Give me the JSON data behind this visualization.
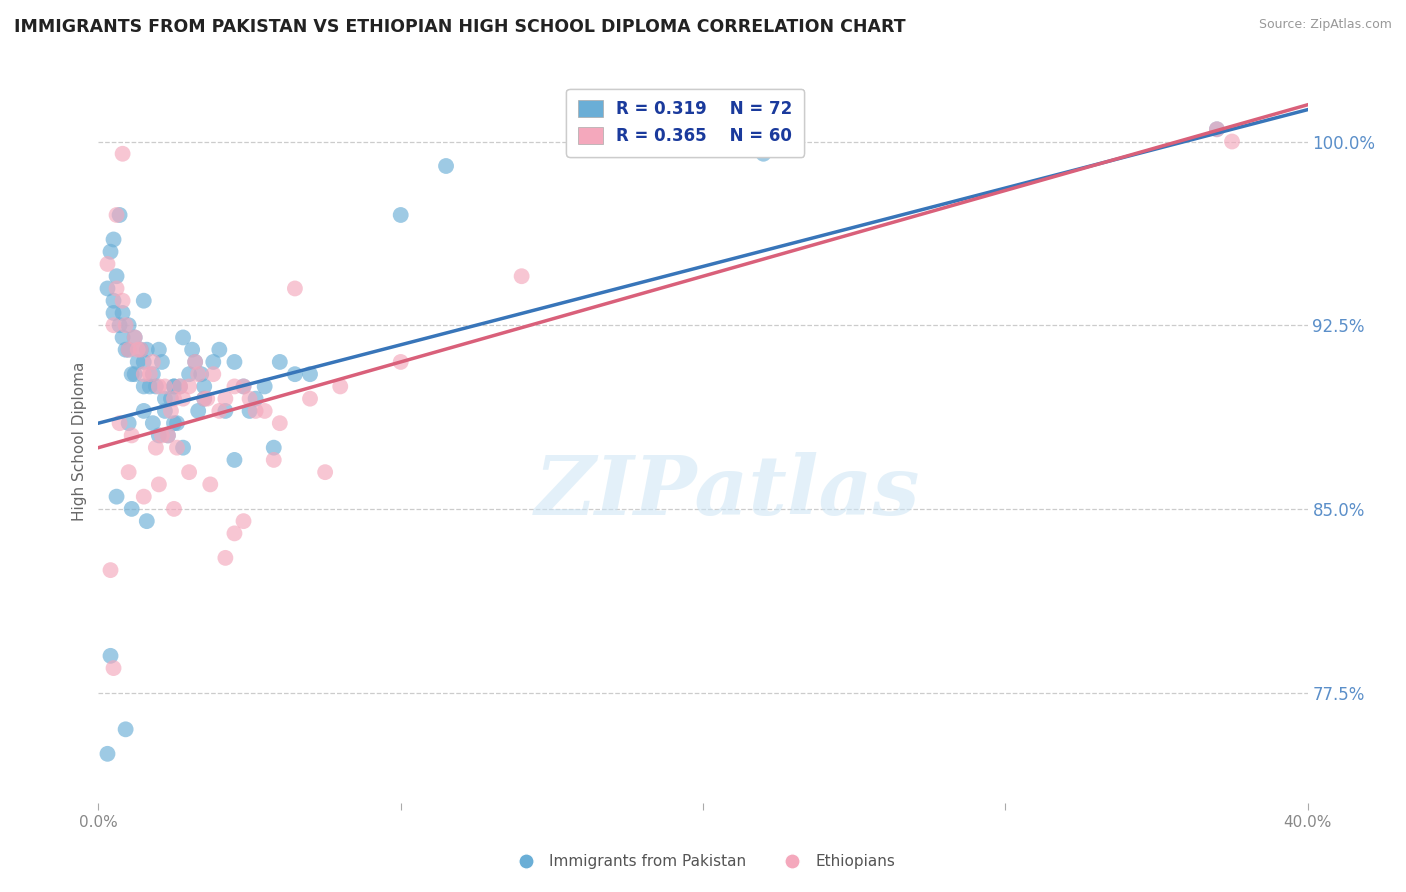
{
  "title": "IMMIGRANTS FROM PAKISTAN VS ETHIOPIAN HIGH SCHOOL DIPLOMA CORRELATION CHART",
  "source": "Source: ZipAtlas.com",
  "ylabel": "High School Diploma",
  "xlim": [
    0.0,
    40.0
  ],
  "ylim": [
    73.0,
    102.5
  ],
  "yticks": [
    77.5,
    85.0,
    92.5,
    100.0
  ],
  "xticks": [
    0,
    10,
    20,
    30,
    40
  ],
  "legend_r1": "R = 0.319",
  "legend_n1": "N = 72",
  "legend_r2": "R = 0.365",
  "legend_n2": "N = 60",
  "blue_color": "#6aaed6",
  "pink_color": "#f4a8bc",
  "blue_line_color": "#3875b9",
  "pink_line_color": "#d9607a",
  "tick_color": "#5b8fc9",
  "watermark": "ZIPatlas",
  "pakistan_x": [
    0.5,
    0.8,
    1.0,
    1.2,
    1.5,
    1.5,
    1.8,
    2.0,
    2.2,
    2.5,
    2.8,
    3.0,
    3.2,
    3.5,
    4.0,
    4.2,
    4.5,
    5.0,
    5.5,
    6.0,
    6.5,
    7.0,
    0.3,
    0.5,
    0.7,
    0.9,
    1.1,
    1.3,
    1.6,
    1.9,
    2.1,
    2.4,
    2.7,
    3.1,
    3.4,
    3.8,
    4.8,
    5.2,
    1.0,
    1.5,
    2.0,
    2.5,
    0.4,
    0.6,
    0.8,
    1.2,
    1.4,
    1.7,
    2.2,
    2.6,
    3.5,
    4.5,
    10.0,
    0.5,
    1.0,
    1.5,
    2.5,
    0.7,
    1.8,
    2.3,
    11.5,
    0.6,
    1.1,
    2.8,
    3.3,
    0.9,
    1.6,
    22.0,
    37.0,
    0.4,
    5.8,
    0.3
  ],
  "pakistan_y": [
    93.5,
    92.0,
    91.5,
    90.5,
    91.0,
    90.0,
    90.5,
    91.5,
    89.5,
    90.0,
    92.0,
    90.5,
    91.0,
    90.0,
    91.5,
    89.0,
    91.0,
    89.0,
    90.0,
    91.0,
    90.5,
    90.5,
    94.0,
    93.0,
    92.5,
    91.5,
    90.5,
    91.0,
    91.5,
    90.0,
    91.0,
    89.5,
    90.0,
    91.5,
    90.5,
    91.0,
    90.0,
    89.5,
    88.5,
    89.0,
    88.0,
    88.5,
    95.5,
    94.5,
    93.0,
    92.0,
    91.5,
    90.0,
    89.0,
    88.5,
    89.5,
    87.0,
    97.0,
    96.0,
    92.5,
    93.5,
    90.0,
    97.0,
    88.5,
    88.0,
    99.0,
    85.5,
    85.0,
    87.5,
    89.0,
    76.0,
    84.5,
    99.5,
    100.5,
    79.0,
    87.5,
    75.0
  ],
  "ethiopian_x": [
    0.5,
    1.0,
    1.5,
    2.0,
    2.5,
    3.0,
    3.5,
    4.0,
    4.5,
    5.0,
    5.5,
    6.0,
    7.0,
    8.0,
    0.8,
    1.2,
    1.8,
    2.2,
    2.8,
    3.2,
    3.8,
    4.2,
    4.8,
    0.3,
    0.6,
    0.9,
    1.4,
    1.7,
    2.4,
    2.7,
    3.3,
    3.6,
    5.2,
    1.0,
    1.5,
    2.0,
    2.5,
    3.0,
    0.5,
    4.5,
    6.5,
    0.7,
    1.1,
    1.9,
    2.3,
    3.7,
    5.8,
    10.0,
    0.4,
    7.5,
    0.6,
    1.3,
    2.6,
    4.8,
    14.0,
    37.0,
    0.8,
    2.1,
    4.2,
    37.5
  ],
  "ethiopian_y": [
    92.5,
    91.5,
    90.5,
    90.0,
    89.5,
    90.0,
    89.5,
    89.0,
    90.0,
    89.5,
    89.0,
    88.5,
    89.5,
    90.0,
    93.5,
    92.0,
    91.0,
    90.0,
    89.5,
    91.0,
    90.5,
    89.5,
    90.0,
    95.0,
    94.0,
    92.5,
    91.5,
    90.5,
    89.0,
    90.0,
    90.5,
    89.5,
    89.0,
    86.5,
    85.5,
    86.0,
    85.0,
    86.5,
    78.5,
    84.0,
    94.0,
    88.5,
    88.0,
    87.5,
    88.0,
    86.0,
    87.0,
    91.0,
    82.5,
    86.5,
    97.0,
    91.5,
    87.5,
    84.5,
    94.5,
    100.5,
    99.5,
    88.0,
    83.0,
    100.0
  ],
  "blue_intercept": 88.5,
  "blue_slope": 0.32,
  "pink_intercept": 87.5,
  "pink_slope": 0.35
}
